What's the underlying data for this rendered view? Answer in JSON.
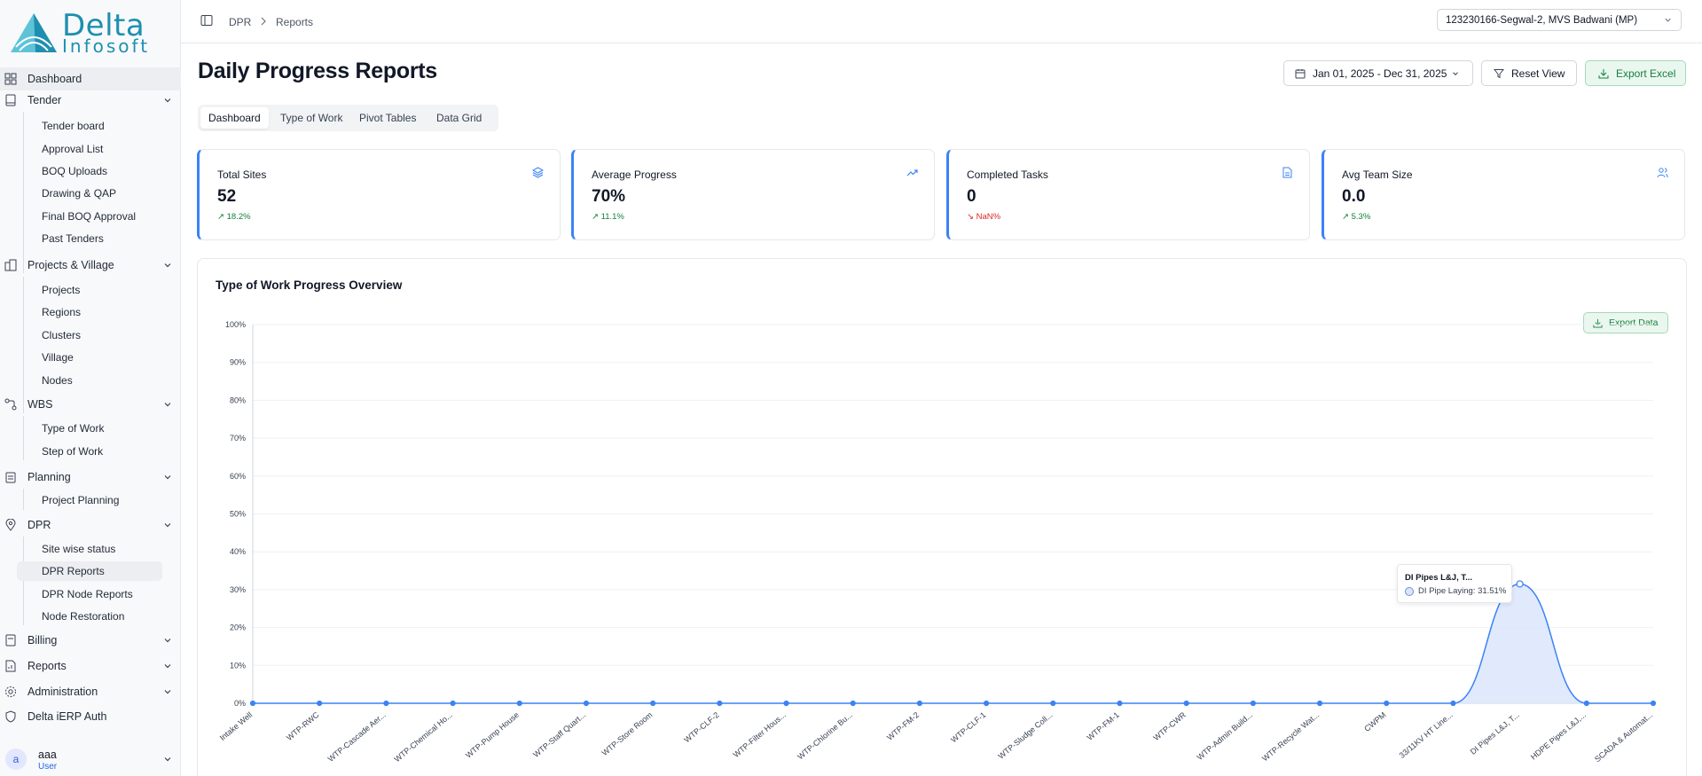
{
  "brand": {
    "line1": "Delta",
    "line2": "Infosoft"
  },
  "sidebar": {
    "dashboard": "Dashboard",
    "tender": {
      "label": "Tender",
      "items": [
        "Tender board",
        "Approval List",
        "BOQ Uploads",
        "Drawing & QAP",
        "Final BOQ Approval",
        "Past Tenders"
      ]
    },
    "projects": {
      "label": "Projects & Village",
      "items": [
        "Projects",
        "Regions",
        "Clusters",
        "Village",
        "Nodes"
      ]
    },
    "wbs": {
      "label": "WBS",
      "items": [
        "Type of Work",
        "Step of Work"
      ]
    },
    "planning": {
      "label": "Planning",
      "items": [
        "Project Planning"
      ]
    },
    "dpr": {
      "label": "DPR",
      "items": [
        "Site wise status",
        "DPR Reports",
        "DPR Node Reports",
        "Node Restoration"
      ]
    },
    "billing": "Billing",
    "reports": "Reports",
    "administration": "Administration",
    "erp_auth": "Delta iERP Auth"
  },
  "user": {
    "initial": "a",
    "name": "aaa",
    "role": "User"
  },
  "breadcrumb": {
    "root": "DPR",
    "current": "Reports"
  },
  "project_select": {
    "value": "123230166-Segwal-2, MVS Badwani (MP)"
  },
  "page": {
    "title": "Daily Progress Reports"
  },
  "toolbar": {
    "date_range": "Jan 01, 2025 - Dec 31, 2025",
    "reset": "Reset View",
    "export": "Export Excel"
  },
  "tabs": [
    "Dashboard",
    "Type of Work",
    "Pivot Tables",
    "Data Grid"
  ],
  "cards": [
    {
      "title": "Total Sites",
      "value": "52",
      "delta": "18.2%",
      "trend": "up",
      "icon": "layers-icon"
    },
    {
      "title": "Average Progress",
      "value": "70%",
      "delta": "11.1%",
      "trend": "up",
      "icon": "trending-up-icon"
    },
    {
      "title": "Completed Tasks",
      "value": "0",
      "delta": "NaN%",
      "trend": "down",
      "icon": "file-text-icon"
    },
    {
      "title": "Avg Team Size",
      "value": "0.0",
      "delta": "5.3%",
      "trend": "up",
      "icon": "users-icon"
    }
  ],
  "chart_section": {
    "title": "Type of Work Progress Overview",
    "export_label": "Export Data"
  },
  "chart_data": {
    "type": "area",
    "title": "Type of Work Progress Overview",
    "xlabel": "",
    "ylabel": "",
    "y_ticks": [
      "0%",
      "10%",
      "20%",
      "30%",
      "40%",
      "50%",
      "60%",
      "70%",
      "80%",
      "90%",
      "100%"
    ],
    "ylim": [
      0,
      100
    ],
    "grid": true,
    "categories": [
      "Intake Well",
      "WTP-RWC",
      "WTP-Cascade Aer...",
      "WTP-Chemical Ho...",
      "WTP-Pump House",
      "WTP-Staff Quart...",
      "WTP-Store Room",
      "WTP-CLF-2",
      "WTP-Filter Hous...",
      "WTP-Chlorine Bu...",
      "WTP-FM-2",
      "WTP-CLF-1",
      "WTP-Sludge Coll...",
      "WTP-FM-1",
      "WTP-CWR",
      "WTP-Admin Build...",
      "WTP-Recycle Wat...",
      "CWPM",
      "33/11KV HT Line...",
      "DI Pipes L&J, T...",
      "HDPE Pipes L&J,...",
      "SCADA & Automat..."
    ],
    "series": [
      {
        "name": "DI Pipe Laying",
        "values": [
          0,
          0,
          0,
          0,
          0,
          0,
          0,
          0,
          0,
          0,
          0,
          0,
          0,
          0,
          0,
          0,
          0,
          0,
          0,
          31.51,
          0,
          0
        ]
      }
    ],
    "tooltip": {
      "title": "DI Pipes L&J, T...",
      "label": "DI Pipe Laying: 31.51%"
    },
    "color": "#3b82f6"
  }
}
